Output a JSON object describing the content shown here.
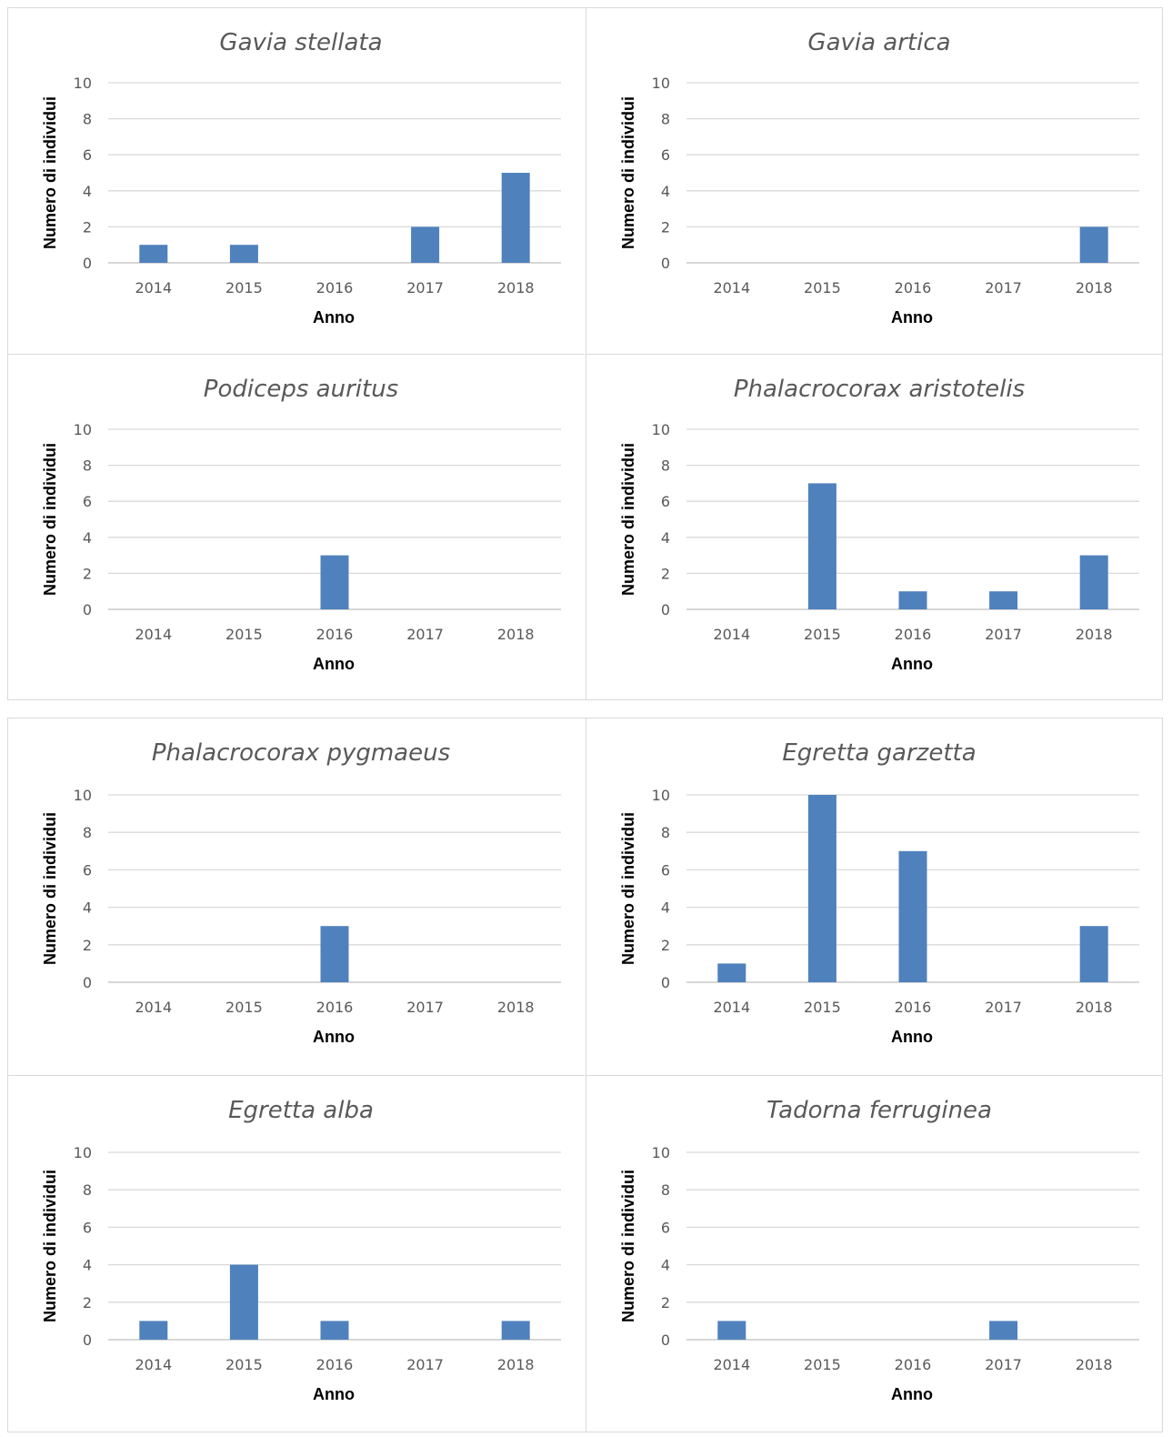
{
  "colors": {
    "bar": "#4f81bd",
    "grid": "#d9d9d9",
    "text": "#595959",
    "border": "#d9d9d9"
  },
  "chart_data": [
    {
      "type": "bar",
      "title": "Gavia stellata",
      "categories": [
        "2014",
        "2015",
        "2016",
        "2017",
        "2018"
      ],
      "values": [
        1,
        1,
        0,
        2,
        5
      ],
      "xlabel": "Anno",
      "ylabel": "Numero di individui",
      "ylim": [
        0,
        10
      ],
      "yticks": [
        0,
        2,
        4,
        6,
        8,
        10
      ],
      "grid": true,
      "legend": "none"
    },
    {
      "type": "bar",
      "title": "Gavia artica",
      "categories": [
        "2014",
        "2015",
        "2016",
        "2017",
        "2018"
      ],
      "values": [
        0,
        0,
        0,
        0,
        2
      ],
      "xlabel": "Anno",
      "ylabel": "Numero di individui",
      "ylim": [
        0,
        10
      ],
      "yticks": [
        0,
        2,
        4,
        6,
        8,
        10
      ],
      "grid": true,
      "legend": "none"
    },
    {
      "type": "bar",
      "title": "Podiceps auritus",
      "categories": [
        "2014",
        "2015",
        "2016",
        "2017",
        "2018"
      ],
      "values": [
        0,
        0,
        3,
        0,
        0
      ],
      "xlabel": "Anno",
      "ylabel": "Numero di individui",
      "ylim": [
        0,
        10
      ],
      "yticks": [
        0,
        2,
        4,
        6,
        8,
        10
      ],
      "grid": true,
      "legend": "none"
    },
    {
      "type": "bar",
      "title": "Phalacrocorax aristotelis",
      "categories": [
        "2014",
        "2015",
        "2016",
        "2017",
        "2018"
      ],
      "values": [
        0,
        7,
        1,
        1,
        3
      ],
      "xlabel": "Anno",
      "ylabel": "Numero di individui",
      "ylim": [
        0,
        10
      ],
      "yticks": [
        0,
        2,
        4,
        6,
        8,
        10
      ],
      "grid": true,
      "legend": "none"
    },
    {
      "type": "bar",
      "title": "Phalacrocorax pygmaeus",
      "categories": [
        "2014",
        "2015",
        "2016",
        "2017",
        "2018"
      ],
      "values": [
        0,
        0,
        3,
        0,
        0
      ],
      "xlabel": "Anno",
      "ylabel": "Numero di individui",
      "ylim": [
        0,
        10
      ],
      "yticks": [
        0,
        2,
        4,
        6,
        8,
        10
      ],
      "grid": true,
      "legend": "none"
    },
    {
      "type": "bar",
      "title": "Egretta garzetta",
      "categories": [
        "2014",
        "2015",
        "2016",
        "2017",
        "2018"
      ],
      "values": [
        1,
        10,
        7,
        0,
        3
      ],
      "xlabel": "Anno",
      "ylabel": "Numero di individui",
      "ylim": [
        0,
        10
      ],
      "yticks": [
        0,
        2,
        4,
        6,
        8,
        10
      ],
      "grid": true,
      "legend": "none"
    },
    {
      "type": "bar",
      "title": "Egretta alba",
      "categories": [
        "2014",
        "2015",
        "2016",
        "2017",
        "2018"
      ],
      "values": [
        1,
        4,
        1,
        0,
        1
      ],
      "xlabel": "Anno",
      "ylabel": "Numero di individui",
      "ylim": [
        0,
        10
      ],
      "yticks": [
        0,
        2,
        4,
        6,
        8,
        10
      ],
      "grid": true,
      "legend": "none"
    },
    {
      "type": "bar",
      "title": "Tadorna ferruginea",
      "categories": [
        "2014",
        "2015",
        "2016",
        "2017",
        "2018"
      ],
      "values": [
        1,
        0,
        0,
        1,
        0
      ],
      "xlabel": "Anno",
      "ylabel": "Numero di individui",
      "ylim": [
        0,
        10
      ],
      "yticks": [
        0,
        2,
        4,
        6,
        8,
        10
      ],
      "grid": true,
      "legend": "none"
    }
  ]
}
